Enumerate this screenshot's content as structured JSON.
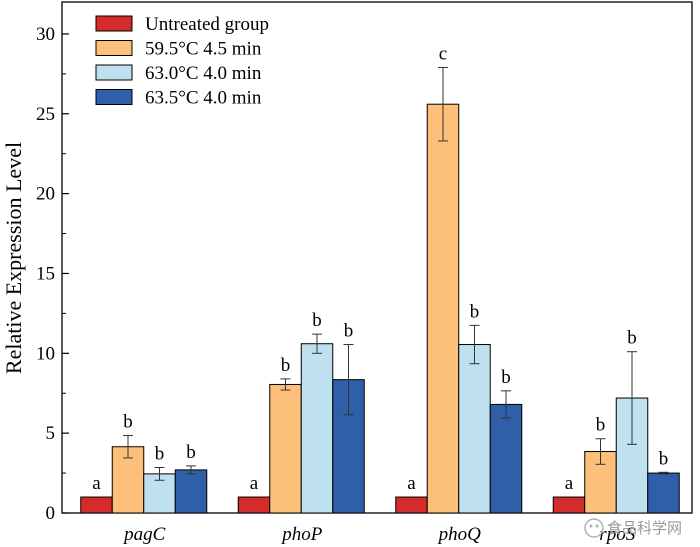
{
  "chart_data": {
    "type": "bar",
    "ylabel": "Relative Expression Level",
    "xlabel": "",
    "ylim": [
      0,
      32
    ],
    "yticks": [
      0,
      5,
      10,
      15,
      20,
      25,
      30
    ],
    "categories": [
      "pagC",
      "phoP",
      "phoQ",
      "rpoS"
    ],
    "series": [
      {
        "name": "Untreated group",
        "color": "#d42b2b",
        "values": [
          1.0,
          1.0,
          1.0,
          1.0
        ],
        "errors": [
          0.0,
          0.0,
          0.0,
          0.0
        ],
        "labels": [
          "a",
          "a",
          "a",
          "a"
        ]
      },
      {
        "name": "59.5°C 4.5 min",
        "color": "#fcc07a",
        "values": [
          4.15,
          8.05,
          25.6,
          3.85
        ],
        "errors": [
          0.7,
          0.35,
          2.3,
          0.8
        ],
        "labels": [
          "b",
          "b",
          "c",
          "b"
        ]
      },
      {
        "name": "63.0°C 4.0 min",
        "color": "#bfe0ef",
        "values": [
          2.45,
          10.6,
          10.55,
          7.2
        ],
        "errors": [
          0.4,
          0.6,
          1.2,
          2.9
        ],
        "labels": [
          "b",
          "b",
          "b",
          "b"
        ]
      },
      {
        "name": "63.5°C 4.0 min",
        "color": "#2f5fa8",
        "values": [
          2.7,
          8.35,
          6.8,
          2.5
        ],
        "errors": [
          0.25,
          2.2,
          0.85,
          0.05
        ],
        "labels": [
          "b",
          "b",
          "b",
          "b"
        ]
      }
    ],
    "legend_position": "top-left",
    "watermark": "食品科学网"
  }
}
